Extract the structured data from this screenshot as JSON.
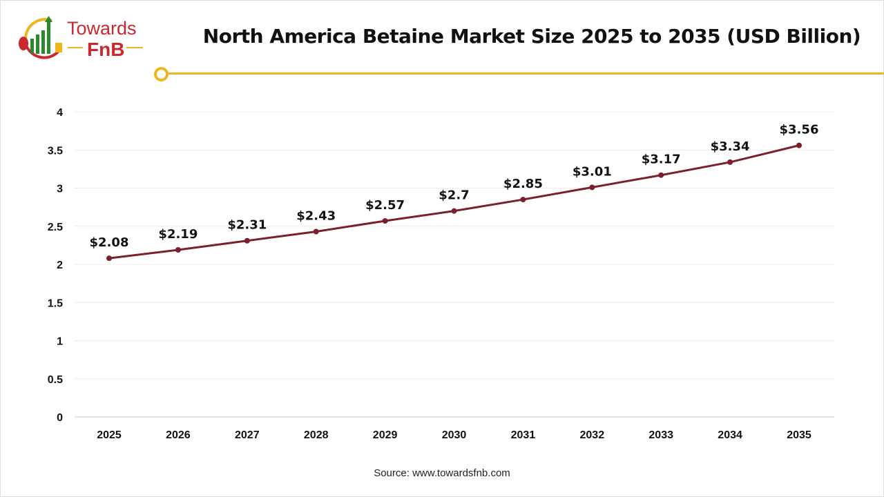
{
  "logo": {
    "line1": "Towards",
    "line2": "FnB"
  },
  "source": "Source: www.towardsfnb.com",
  "colors": {
    "line": "#7a1f2b",
    "accent": "#f0b51c",
    "logo_red": "#c8282e",
    "logo_green": "#2a8a2a"
  },
  "chart_data": {
    "type": "line",
    "title": "North America Betaine Market Size 2025 to 2035 (USD Billion)",
    "xlabel": "",
    "ylabel": "",
    "categories": [
      "2025",
      "2026",
      "2027",
      "2028",
      "2029",
      "2030",
      "2031",
      "2032",
      "2033",
      "2034",
      "2035"
    ],
    "values": [
      2.08,
      2.19,
      2.31,
      2.43,
      2.57,
      2.7,
      2.85,
      3.01,
      3.17,
      3.34,
      3.56
    ],
    "data_labels": [
      "$2.08",
      "$2.19",
      "$2.31",
      "$2.43",
      "$2.57",
      "$2.7",
      "$2.85",
      "$3.01",
      "$3.17",
      "$3.34",
      "$3.56"
    ],
    "yticks": [
      "0",
      "0.5",
      "1",
      "1.5",
      "2",
      "2.5",
      "3",
      "3.5",
      "4"
    ],
    "ylim": [
      0,
      4
    ],
    "grid": true,
    "legend": "none"
  }
}
